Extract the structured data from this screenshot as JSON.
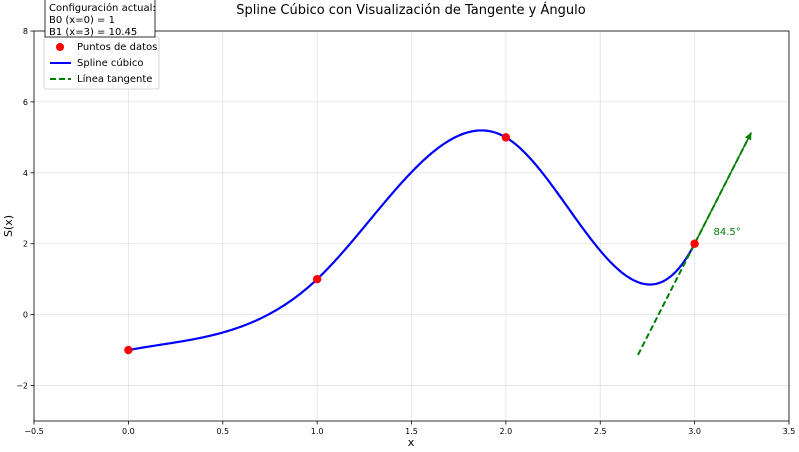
{
  "chart_data": {
    "type": "line",
    "title": "Spline Cúbico con Visualización de Tangente y Ángulo",
    "xlabel": "x",
    "ylabel": "S(x)",
    "xlim": [
      -0.5,
      3.5
    ],
    "ylim": [
      -3,
      8
    ],
    "xticks": [
      -0.5,
      0.0,
      0.5,
      1.0,
      1.5,
      2.0,
      2.5,
      3.0,
      3.5
    ],
    "xtick_labels": [
      "−0.5",
      "0.0",
      "0.5",
      "1.0",
      "1.5",
      "2.0",
      "2.5",
      "3.0",
      "3.5"
    ],
    "yticks": [
      -2,
      0,
      2,
      4,
      6,
      8
    ],
    "ytick_labels": [
      "−2",
      "0",
      "2",
      "4",
      "6",
      "8"
    ],
    "grid": true,
    "legend_position": "top-left",
    "series": [
      {
        "name": "Puntos de datos",
        "kind": "scatter",
        "color": "#ff0000",
        "x": [
          0,
          1,
          2,
          3
        ],
        "y": [
          -1,
          1,
          5,
          2
        ]
      },
      {
        "name": "Spline cúbico",
        "kind": "line",
        "color": "#0000ff",
        "knots_x": [
          0,
          1,
          2,
          3
        ],
        "knots_y": [
          -1,
          1,
          5,
          2
        ],
        "boundary_slopes": [
          1,
          10.45
        ]
      },
      {
        "name": "Línea tangente",
        "kind": "dashed-line",
        "color": "#008000",
        "x": [
          2.7,
          3.3
        ],
        "y": [
          -1.135,
          5.135
        ]
      }
    ],
    "annotations": [
      {
        "text": "84.5°",
        "x": 3.1,
        "y": 2.25,
        "color": "#008000"
      }
    ],
    "config_box": {
      "title": "Configuración actual:",
      "lines": [
        "B0 (x=0) = 1",
        "B1 (x=3) = 10.45"
      ]
    }
  }
}
